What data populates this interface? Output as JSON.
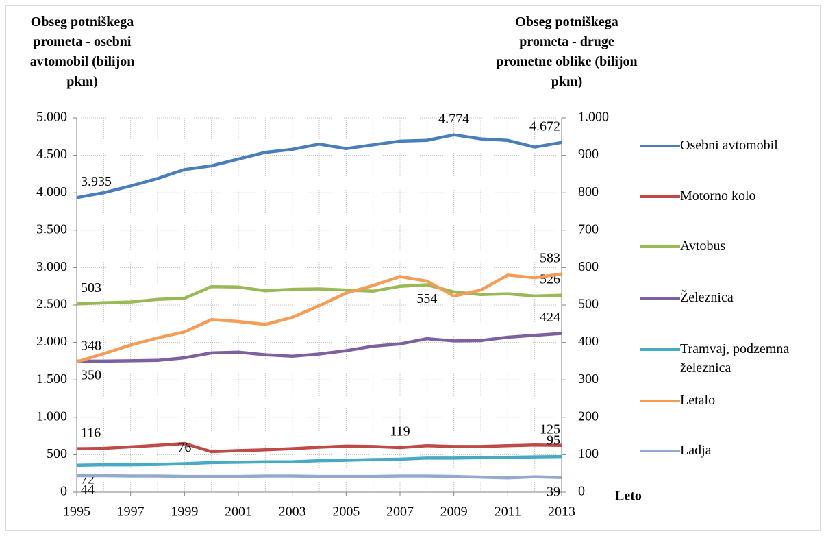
{
  "chart_data": {
    "type": "line",
    "y_label": "Obseg potniškega prometa - osebni avtomobil (bilijon pkm)",
    "y2_label": "Obseg potniškega prometa - druge prometne oblike (bilijon pkm)",
    "x_label": "Leto",
    "x": [
      1995,
      1996,
      1997,
      1998,
      1999,
      2000,
      2001,
      2002,
      2003,
      2004,
      2005,
      2006,
      2007,
      2008,
      2009,
      2010,
      2011,
      2012,
      2013
    ],
    "xlim": [
      1995,
      2013
    ],
    "xticks": [
      1995,
      1997,
      1999,
      2001,
      2003,
      2005,
      2007,
      2009,
      2011,
      2013
    ],
    "ylim": [
      0,
      5000
    ],
    "yticks": [
      0,
      500,
      {
        "value": 1000,
        "label": "1.000"
      },
      {
        "value": 1500,
        "label": "1.500"
      },
      {
        "value": 2000,
        "label": "2.000"
      },
      {
        "value": 2500,
        "label": "2.500"
      },
      {
        "value": 3000,
        "label": "3.000"
      },
      {
        "value": 3500,
        "label": "3.500"
      },
      {
        "value": 4000,
        "label": "4.000"
      },
      {
        "value": 4500,
        "label": "4.500"
      },
      {
        "value": 5000,
        "label": "5.000"
      }
    ],
    "y2lim": [
      0,
      1000
    ],
    "y2ticks": [
      0,
      100,
      200,
      300,
      400,
      500,
      600,
      700,
      800,
      900,
      {
        "value": 1000,
        "label": "1.000"
      }
    ],
    "grid": true,
    "legend": "right",
    "series": [
      {
        "name": "Osebni avtomobil",
        "color": "#4a7ebb",
        "axis": "y",
        "values": [
          3935,
          4000,
          4090,
          4190,
          4310,
          4360,
          4450,
          4540,
          4580,
          4650,
          4590,
          4640,
          4690,
          4700,
          4774,
          4720,
          4700,
          4610,
          4672
        ],
        "value_labels": [
          "3.935",
          null,
          null,
          null,
          null,
          null,
          null,
          null,
          null,
          null,
          null,
          null,
          null,
          null,
          "4.774",
          null,
          null,
          null,
          "4.672"
        ]
      },
      {
        "name": "Motorno kolo",
        "color": "#be4b48",
        "axis": "y2",
        "values": [
          116,
          117,
          121,
          125,
          130,
          108,
          111,
          113,
          116,
          120,
          123,
          122,
          119,
          124,
          122,
          122,
          124,
          126,
          125
        ],
        "value_labels": [
          "116",
          null,
          null,
          null,
          null,
          null,
          null,
          null,
          null,
          null,
          null,
          null,
          "119",
          null,
          null,
          null,
          null,
          null,
          "125"
        ]
      },
      {
        "name": "Avtobus",
        "color": "#98b954",
        "axis": "y2",
        "values": [
          503,
          506,
          508,
          515,
          518,
          549,
          548,
          538,
          542,
          543,
          540,
          537,
          550,
          554,
          535,
          528,
          530,
          524,
          526
        ],
        "value_labels": [
          "503",
          null,
          null,
          null,
          null,
          null,
          null,
          null,
          null,
          null,
          null,
          null,
          null,
          "554",
          null,
          null,
          null,
          null,
          "526"
        ]
      },
      {
        "name": "Železnica",
        "color": "#7d60a0",
        "axis": "y2",
        "values": [
          350,
          350,
          351,
          352,
          359,
          372,
          374,
          367,
          363,
          369,
          378,
          390,
          396,
          410,
          404,
          405,
          414,
          419,
          424
        ],
        "value_labels": [
          "350",
          null,
          null,
          null,
          null,
          null,
          null,
          null,
          null,
          null,
          null,
          null,
          null,
          null,
          null,
          null,
          null,
          null,
          "424"
        ]
      },
      {
        "name": "Tramvaj, podzemna železnica",
        "color": "#46aac5",
        "axis": "y2",
        "values": [
          72,
          73,
          73,
          74,
          76,
          79,
          80,
          81,
          81,
          84,
          85,
          87,
          88,
          91,
          91,
          92,
          93,
          94,
          95
        ],
        "value_labels": [
          "72",
          null,
          null,
          null,
          "76",
          null,
          null,
          null,
          null,
          null,
          null,
          null,
          null,
          null,
          null,
          null,
          null,
          null,
          "95"
        ]
      },
      {
        "name": "Letalo",
        "color": "#f59d56",
        "axis": "y2",
        "values": [
          348,
          370,
          393,
          412,
          428,
          461,
          456,
          448,
          467,
          498,
          532,
          552,
          576,
          564,
          524,
          540,
          580,
          573,
          583
        ],
        "value_labels": [
          "348",
          null,
          null,
          null,
          null,
          null,
          null,
          null,
          null,
          null,
          null,
          null,
          null,
          null,
          null,
          null,
          null,
          null,
          "583"
        ]
      },
      {
        "name": "Ladja",
        "color": "#93a9cf",
        "axis": "y2",
        "values": [
          44,
          44,
          43,
          43,
          42,
          42,
          42,
          43,
          43,
          42,
          42,
          42,
          43,
          43,
          42,
          40,
          38,
          41,
          39
        ],
        "value_labels": [
          "44",
          null,
          null,
          null,
          null,
          null,
          null,
          null,
          null,
          null,
          null,
          null,
          null,
          null,
          null,
          null,
          null,
          null,
          "39"
        ]
      }
    ]
  }
}
